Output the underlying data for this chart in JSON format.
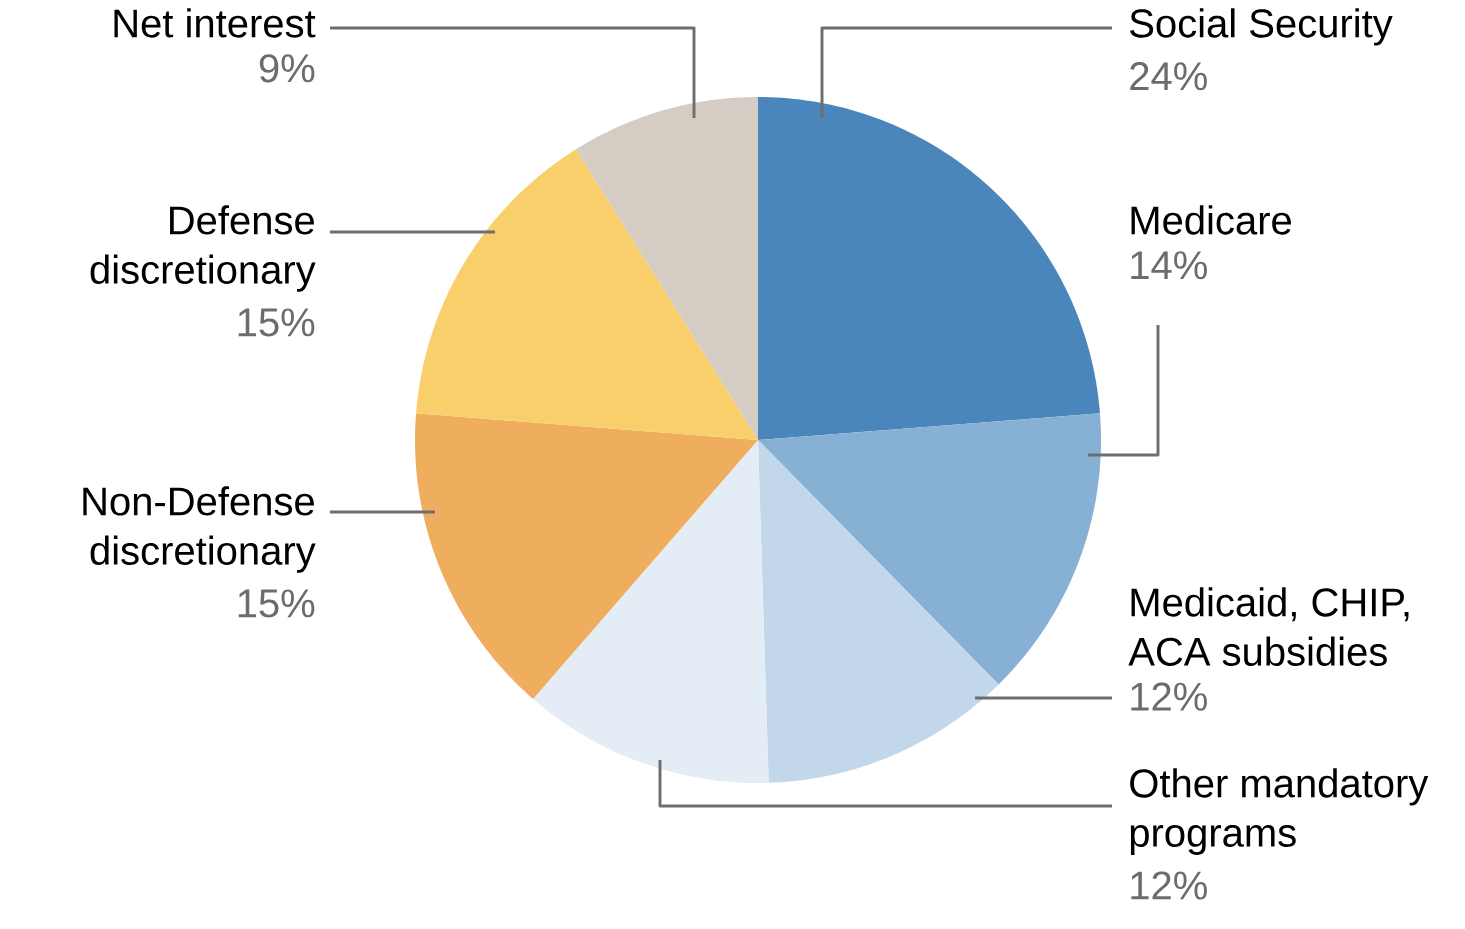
{
  "chart_data": {
    "type": "pie",
    "categories": [
      "Social Security",
      "Medicare",
      "Medicaid, CHIP, ACA subsidies",
      "Other mandatory programs",
      "Non-Defense discretionary",
      "Defense discretionary",
      "Net interest"
    ],
    "values": [
      24,
      14,
      12,
      12,
      15,
      15,
      9
    ],
    "value_labels": [
      "24%",
      "14%",
      "12%",
      "12%",
      "15%",
      "15%",
      "9%"
    ],
    "colors": [
      "#4a86bb",
      "#86b0d4",
      "#c2d7ea",
      "#e4edf6",
      "#eeae5e",
      "#f9cf6b",
      "#d5cdc3"
    ]
  }
}
